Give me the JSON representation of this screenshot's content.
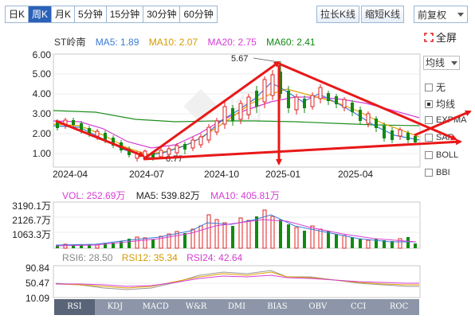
{
  "toolbar": {
    "periods": [
      {
        "label": "日K",
        "active": false
      },
      {
        "label": "周K",
        "active": true
      },
      {
        "label": "月K",
        "active": false
      },
      {
        "label": "5分钟",
        "active": false
      },
      {
        "label": "15分钟",
        "active": false
      },
      {
        "label": "30分钟",
        "active": false
      },
      {
        "label": "60分钟",
        "active": false
      }
    ],
    "stretch_label": "拉长K线",
    "shrink_label": "缩短K线",
    "adjust_label": "前复权",
    "fullscreen_label": "全屏"
  },
  "ma_legend": {
    "name": "ST岭南",
    "ma5": "MA5: 1.89",
    "ma10": "MA10: 2.07",
    "ma20": "MA20: 2.75",
    "ma60": "MA60: 2.41"
  },
  "side_panel": {
    "select_label": "均线",
    "options": [
      {
        "label": "无",
        "checked": false
      },
      {
        "label": "均线",
        "checked": true
      },
      {
        "label": "EXPMA",
        "checked": false
      },
      {
        "label": "SAR",
        "checked": false
      },
      {
        "label": "BOLL",
        "checked": false
      },
      {
        "label": "BBI",
        "checked": false
      }
    ]
  },
  "price_axis": [
    "6.00",
    "5.00",
    "4.00",
    "3.00",
    "2.00",
    "1.00"
  ],
  "date_axis": [
    "2024-04",
    "2024-07",
    "2024-10",
    "2025-01",
    "2025-04"
  ],
  "annotations": {
    "high": "5.67",
    "low": "0.77"
  },
  "volume": {
    "vol": "VOL: 252.69万",
    "ma5": "MA5: 539.82万",
    "ma10": "MA10: 405.81万",
    "axis": [
      "3190.1万",
      "2126.7万",
      "1063.3万"
    ]
  },
  "rsi": {
    "rsi6": "RSI6: 28.50",
    "rsi12": "RSI12: 35.34",
    "rsi24": "RSI24: 42.64",
    "axis": [
      "90.84",
      "50.47",
      "10.09"
    ]
  },
  "indicator_tabs": [
    "RSI",
    "KDJ",
    "MACD",
    "W&R",
    "DMI",
    "BIAS",
    "OBV",
    "CCI",
    "ROC"
  ],
  "colors": {
    "up": "#e02020",
    "down": "#128a12",
    "ma5": "#3a7bd5",
    "ma10": "#e0a000",
    "ma20": "#d43dd4",
    "ma60": "#118811",
    "annotation_arrow": "#e81818"
  }
}
